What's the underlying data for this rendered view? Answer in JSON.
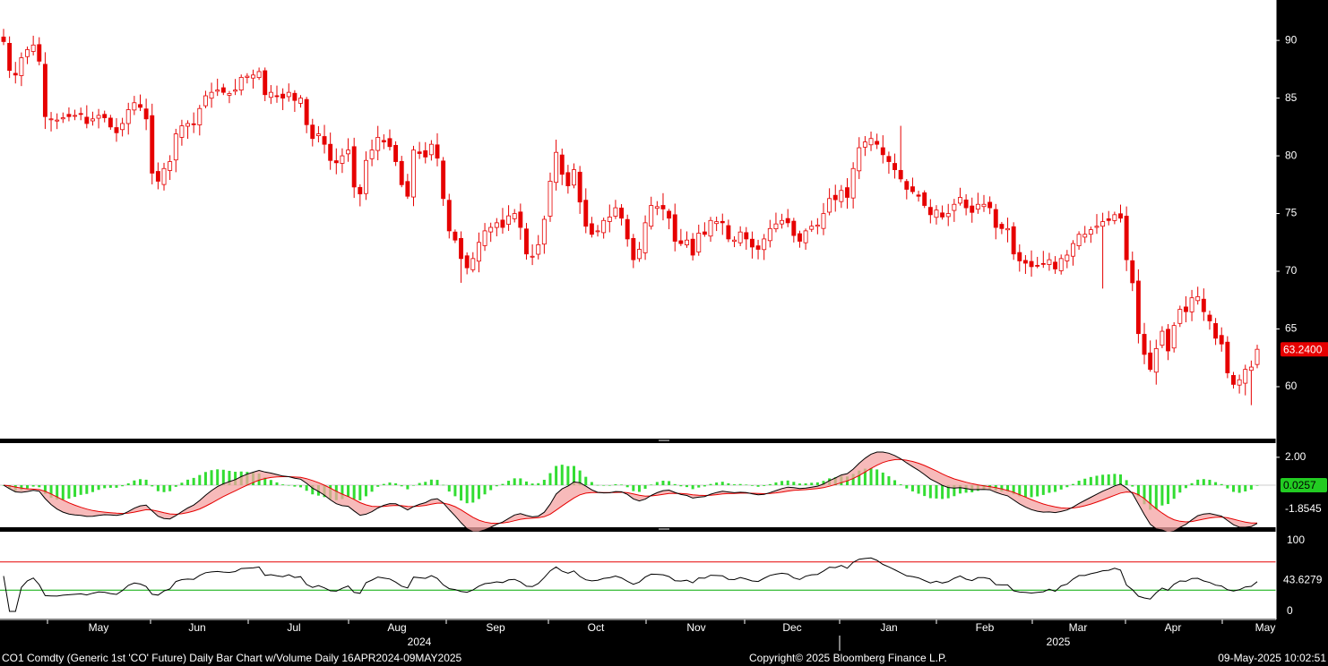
{
  "chart_data": {
    "type": "candlestick",
    "colors": {
      "up": "#e60000",
      "down": "#e60000",
      "background": "#ffffff",
      "frame": "#000000",
      "last_price_badge": "#e60000",
      "signal_line": "#e60000",
      "macd_line": "#000000",
      "histogram": "#33dd33",
      "rsi_upper": "#e60000",
      "rsi_lower": "#00aa00"
    },
    "price": {
      "y_ticks": [
        "90",
        "85",
        "80",
        "75",
        "70",
        "65",
        "60"
      ],
      "ylim": [
        55.5,
        93.5
      ],
      "last_value": 63.24,
      "last_label": "63.2400",
      "closes": [
        89.9,
        87.4,
        87.0,
        88.5,
        89.2,
        89.6,
        88.2,
        83.4,
        83.2,
        83.1,
        83.3,
        83.4,
        83.5,
        83.6,
        82.8,
        83.2,
        83.5,
        83.3,
        82.5,
        82.0,
        82.8,
        84.0,
        84.6,
        84.2,
        83.2,
        78.5,
        77.8,
        78.9,
        79.5,
        81.9,
        82.6,
        82.8,
        82.7,
        84.1,
        85.2,
        85.5,
        85.7,
        85.5,
        85.4,
        85.7,
        86.8,
        86.9,
        87.0,
        87.3,
        85.3,
        85.5,
        85.2,
        85.0,
        85.5,
        84.8,
        85.0,
        82.7,
        81.5,
        81.9,
        81.0,
        79.6,
        79.4,
        80.0,
        80.5,
        77.3,
        76.7,
        79.6,
        80.5,
        81.6,
        81.2,
        80.8,
        79.5,
        77.5,
        76.5,
        80.5,
        80.2,
        79.9,
        81.0,
        79.8,
        76.3,
        73.5,
        72.7,
        71.1,
        70.3,
        71.1,
        72.5,
        73.5,
        73.8,
        74.2,
        73.8,
        74.8,
        75.0,
        73.8,
        71.5,
        71.3,
        72.3,
        74.5,
        77.8,
        80.3,
        78.4,
        77.4,
        78.8,
        76.0,
        73.9,
        73.2,
        73.5,
        74.4,
        74.7,
        75.5,
        74.6,
        72.8,
        71.0,
        71.9,
        74.2,
        75.7,
        75.6,
        75.4,
        74.6,
        72.6,
        72.4,
        72.7,
        71.4,
        73.3,
        73.2,
        74.4,
        74.3,
        74.2,
        72.8,
        72.7,
        73.4,
        72.8,
        72.1,
        71.9,
        72.8,
        73.7,
        74.1,
        74.4,
        74.2,
        73.1,
        72.6,
        73.5,
        73.9,
        74.0,
        75.0,
        76.3,
        76.2,
        77.0,
        76.4,
        78.9,
        80.7,
        81.2,
        81.5,
        81.0,
        80.1,
        79.5,
        78.8,
        78.0,
        77.1,
        76.9,
        76.5,
        75.7,
        74.9,
        75.3,
        74.7,
        75.0,
        75.8,
        76.4,
        75.5,
        75.1,
        75.8,
        75.8,
        75.5,
        73.8,
        73.7,
        73.7,
        71.5,
        70.9,
        70.7,
        70.4,
        70.5,
        70.6,
        71.0,
        70.2,
        71.1,
        71.4,
        72.4,
        73.2,
        73.2,
        73.6,
        73.9,
        74.3,
        74.4,
        74.9,
        74.6,
        71.0,
        69.0,
        64.6,
        62.8,
        61.5,
        63.3,
        64.8,
        63.1,
        65.3,
        66.7,
        66.5,
        67.7,
        67.8,
        66.5,
        65.7,
        64.2,
        63.7,
        61.2,
        60.2,
        60.6,
        61.5,
        61.7,
        63.24
      ]
    },
    "macd": {
      "y_ticks": [
        "2.00",
        "-1.8545"
      ],
      "ylim": [
        -2.4,
        2.4
      ],
      "last_label": "0.0257",
      "last_signal_label": "-1.8545"
    },
    "rsi": {
      "y_ticks": [
        "100",
        "0"
      ],
      "ylim": [
        0,
        100
      ],
      "upper_level": 70,
      "lower_level": 30,
      "last_label": "43.6279"
    },
    "x_axis": {
      "months": [
        "May",
        "Jun",
        "Jul",
        "Aug",
        "Sep",
        "Oct",
        "Nov",
        "Dec",
        "Jan",
        "Feb",
        "Mar",
        "Apr",
        "May"
      ],
      "years": [
        "2024",
        "2025"
      ]
    }
  },
  "footer": {
    "left": "CO1 Comdty (Generic 1st 'CO' Future) Daily Bar Chart w/Volume  Daily 16APR2024-09MAY2025",
    "center": "Copyright© 2025 Bloomberg Finance L.P.",
    "right": "09-May-2025 10:02:51"
  }
}
